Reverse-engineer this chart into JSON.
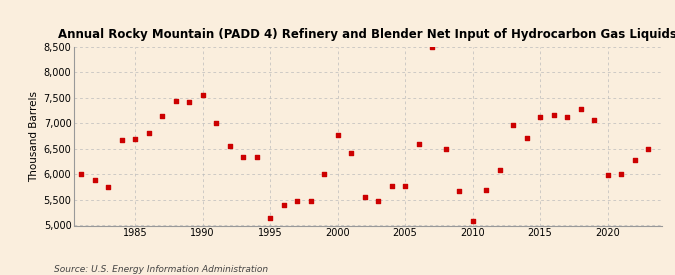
{
  "title": "Annual Rocky Mountain (PADD 4) Refinery and Blender Net Input of Hydrocarbon Gas Liquids",
  "ylabel": "Thousand Barrels",
  "source": "Source: U.S. Energy Information Administration",
  "background_color": "#faeedd",
  "marker_color": "#cc0000",
  "years": [
    1981,
    1982,
    1983,
    1984,
    1985,
    1986,
    1987,
    1988,
    1989,
    1990,
    1991,
    1992,
    1993,
    1994,
    1995,
    1996,
    1997,
    1998,
    1999,
    2000,
    2001,
    2002,
    2003,
    2004,
    2005,
    2006,
    2007,
    2008,
    2009,
    2010,
    2011,
    2012,
    2013,
    2014,
    2015,
    2016,
    2017,
    2018,
    2019,
    2020,
    2021,
    2022,
    2023
  ],
  "values": [
    6000,
    5900,
    5750,
    6680,
    6700,
    6820,
    7150,
    7430,
    7420,
    7550,
    7000,
    6550,
    6340,
    6340,
    5150,
    5400,
    5480,
    5470,
    6010,
    6780,
    6420,
    5560,
    5480,
    5780,
    5780,
    6600,
    8500,
    6500,
    5680,
    5090,
    5700,
    6080,
    6960,
    6720,
    7130,
    7170,
    7130,
    7280,
    7060,
    5980,
    6000,
    6280,
    6490
  ],
  "ylim": [
    5000,
    8500
  ],
  "yticks": [
    5000,
    5500,
    6000,
    6500,
    7000,
    7500,
    8000,
    8500
  ],
  "xlim": [
    1980.5,
    2024
  ],
  "xticks": [
    1985,
    1990,
    1995,
    2000,
    2005,
    2010,
    2015,
    2020
  ]
}
